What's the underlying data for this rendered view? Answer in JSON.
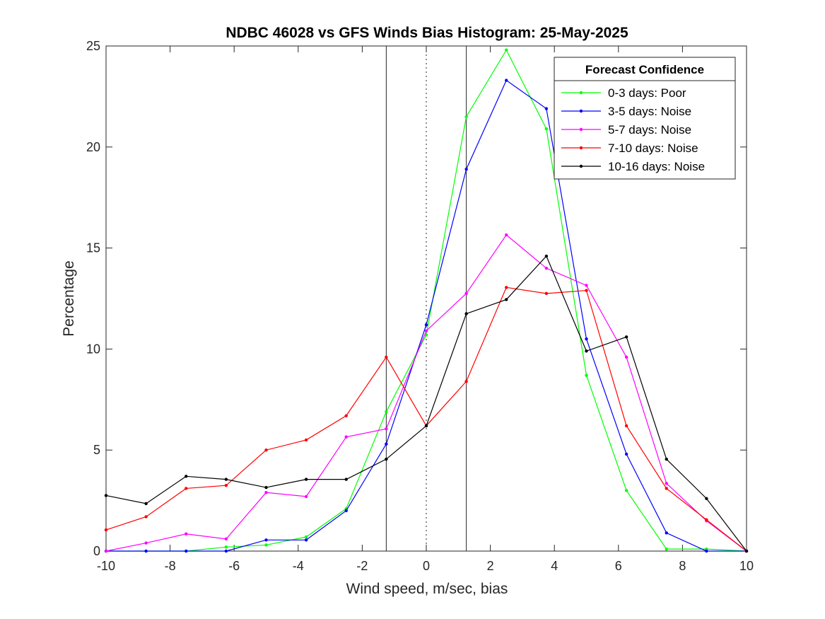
{
  "chart_data": {
    "type": "line",
    "title": "NDBC 46028 vs GFS Winds Bias Histogram: 25-May-2025",
    "xlabel": "Wind speed, m/sec, bias",
    "ylabel": "Percentage",
    "xlim": [
      -10,
      10
    ],
    "ylim": [
      0,
      25
    ],
    "xticks": [
      -10,
      -8,
      -6,
      -4,
      -2,
      0,
      2,
      4,
      6,
      8,
      10
    ],
    "yticks": [
      0,
      5,
      10,
      15,
      20,
      25
    ],
    "grid": false,
    "legend": {
      "title": "Forecast Confidence",
      "placement": "top-right"
    },
    "x": [
      -10,
      -8.75,
      -7.5,
      -6.25,
      -5,
      -3.75,
      -2.5,
      -1.25,
      0,
      1.25,
      2.5,
      3.75,
      5,
      6.25,
      7.5,
      8.75,
      10
    ],
    "vertical_lines": [
      {
        "x": -1.25,
        "style": "solid"
      },
      {
        "x": 0,
        "style": "dotted"
      },
      {
        "x": 1.25,
        "style": "solid"
      }
    ],
    "series": [
      {
        "name": "0-3 days: Poor",
        "color": "#00ff00",
        "values": [
          0,
          0,
          0,
          0.2,
          0.3,
          0.7,
          2.1,
          6.9,
          10.7,
          21.5,
          24.8,
          20.9,
          8.7,
          3.0,
          0.1,
          0.1,
          0
        ]
      },
      {
        "name": "3-5 days: Noise",
        "color": "#0000ff",
        "values": [
          0,
          0,
          0,
          0,
          0.55,
          0.55,
          2.0,
          5.3,
          11.2,
          18.9,
          23.3,
          21.9,
          10.5,
          4.8,
          0.9,
          0,
          0
        ]
      },
      {
        "name": "5-7 days: Noise",
        "color": "#ff00ff",
        "values": [
          0,
          0.4,
          0.85,
          0.6,
          2.9,
          2.7,
          5.65,
          6.05,
          10.9,
          12.75,
          15.65,
          14.0,
          13.15,
          9.6,
          3.35,
          1.5,
          0
        ]
      },
      {
        "name": "7-10 days: Noise",
        "color": "#ff0000",
        "values": [
          1.05,
          1.7,
          3.1,
          3.25,
          5.0,
          5.5,
          6.7,
          9.6,
          6.2,
          8.4,
          13.05,
          12.75,
          12.9,
          6.2,
          3.1,
          1.55,
          0
        ]
      },
      {
        "name": "10-16 days: Noise",
        "color": "#000000",
        "values": [
          2.75,
          2.35,
          3.7,
          3.55,
          3.15,
          3.55,
          3.55,
          4.55,
          6.2,
          11.75,
          12.45,
          14.6,
          9.9,
          10.6,
          4.55,
          2.6,
          0
        ]
      }
    ]
  }
}
